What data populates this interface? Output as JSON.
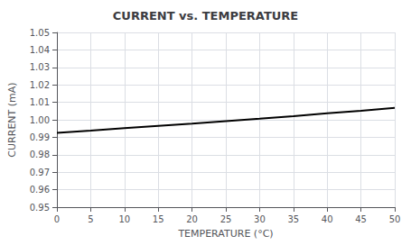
{
  "chart_data": {
    "type": "line",
    "title": "CURRENT vs. TEMPERATURE",
    "xlabel": "TEMPERATURE (°C)",
    "ylabel": "CURRENT (mA)",
    "x": [
      0,
      5,
      10,
      15,
      20,
      25,
      30,
      35,
      40,
      45,
      50
    ],
    "values": [
      0.9925,
      0.9938,
      0.9952,
      0.9965,
      0.9978,
      0.9992,
      1.0006,
      1.0021,
      1.0037,
      1.0052,
      1.0068
    ],
    "color": "#000000",
    "xlim": [
      0,
      50
    ],
    "ylim": [
      0.95,
      1.05
    ],
    "xticks": [
      0,
      5,
      10,
      15,
      20,
      25,
      30,
      35,
      40,
      45,
      50
    ],
    "yticks": [
      0.95,
      0.96,
      0.97,
      0.98,
      0.99,
      {
        "value": 1.0,
        "label": "1.00"
      },
      1.01,
      1.02,
      1.03,
      1.04,
      1.05
    ],
    "grid": true
  }
}
